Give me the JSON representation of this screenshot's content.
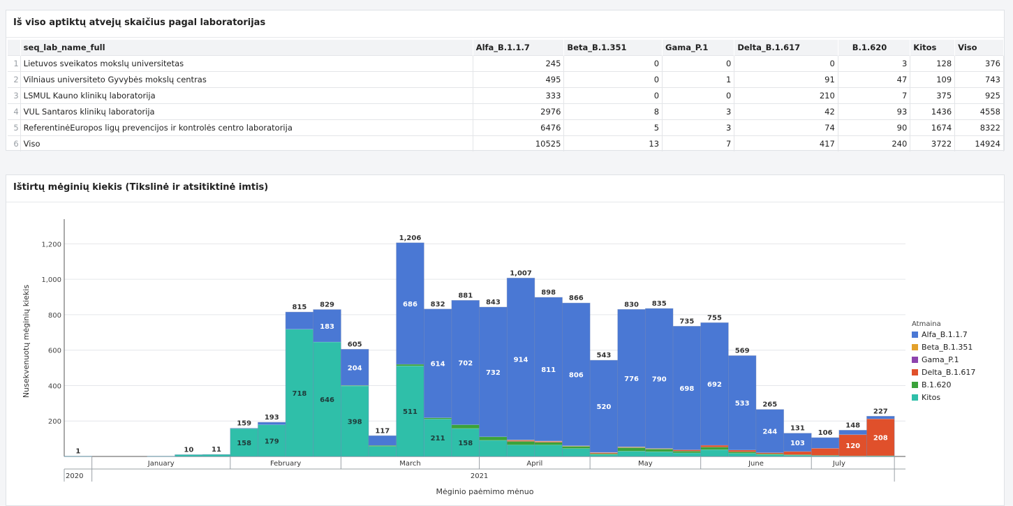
{
  "table_panel": {
    "title": "Iš viso aptiktų atvejų skaičius pagal laboratorijas",
    "columns": [
      "seq_lab_name_full",
      "Alfa_B.1.1.7",
      "Beta_B.1.351",
      "Gama_P.1",
      "Delta_B.1.617",
      "B.1.620",
      "Kitos",
      "Viso"
    ],
    "rows": [
      {
        "idx": "1",
        "cells": [
          "Lietuvos sveikatos mokslų universitetas",
          "245",
          "0",
          "0",
          "0",
          "3",
          "128",
          "376"
        ]
      },
      {
        "idx": "2",
        "cells": [
          "Vilniaus universiteto Gyvybės mokslų centras",
          "495",
          "0",
          "1",
          "91",
          "47",
          "109",
          "743"
        ]
      },
      {
        "idx": "3",
        "cells": [
          "LSMUL Kauno klinikų laboratorija",
          "333",
          "0",
          "0",
          "210",
          "7",
          "375",
          "925"
        ]
      },
      {
        "idx": "4",
        "cells": [
          "VUL Santaros klinikų laboratorija",
          "2976",
          "8",
          "3",
          "42",
          "93",
          "1436",
          "4558"
        ]
      },
      {
        "idx": "5",
        "cells": [
          "ReferentinėEuropos ligų prevencijos ir kontrolės centro laboratorija",
          "6476",
          "5",
          "3",
          "74",
          "90",
          "1674",
          "8322"
        ]
      },
      {
        "idx": "6",
        "cells": [
          "Viso",
          "10525",
          "13",
          "7",
          "417",
          "240",
          "3722",
          "14924"
        ]
      }
    ]
  },
  "chart_panel": {
    "title": "Ištirtų mėginių kiekis (Tikslinė ir atsitiktinė imtis)"
  },
  "chart_data": {
    "type": "bar",
    "stacked": true,
    "xlabel": "Mėginio paėmimo mėnuo",
    "ylabel": "Nusekvenuotų mėginių kiekis",
    "ylim": [
      0,
      1300
    ],
    "yticks": [
      200,
      400,
      600,
      800,
      1000,
      1200
    ],
    "ytick_labels": [
      "200",
      "400",
      "600",
      "800",
      "1,000",
      "1,200"
    ],
    "grid": true,
    "legend": {
      "title": "Atmaina",
      "position": "right"
    },
    "colors": {
      "Alfa_B.1.1.7": "#4a78d4",
      "Beta_B.1.351": "#e3a12b",
      "Gama_P.1": "#8e44ad",
      "Delta_B.1.617": "#e0502b",
      "B.1.620": "#3aa23a",
      "Kitos": "#2fbfa9"
    },
    "months": [
      {
        "label": "January",
        "start": 1,
        "end": 5
      },
      {
        "label": "February",
        "start": 6,
        "end": 9
      },
      {
        "label": "March",
        "start": 10,
        "end": 14
      },
      {
        "label": "April",
        "start": 15,
        "end": 18
      },
      {
        "label": "May",
        "start": 19,
        "end": 22
      },
      {
        "label": "June",
        "start": 23,
        "end": 26
      },
      {
        "label": "July",
        "start": 27,
        "end": 28
      }
    ],
    "years": [
      {
        "label": "2020",
        "start": 0,
        "end": 0
      },
      {
        "label": "2021",
        "start": 1,
        "end": 28
      }
    ],
    "weeks": [
      {
        "total": 1,
        "label": "1",
        "Alfa_B.1.1.7": 0,
        "Beta_B.1.351": 0,
        "Gama_P.1": 0,
        "Delta_B.1.617": 0,
        "B.1.620": 0,
        "Kitos": 1
      },
      {
        "total": 0,
        "label": "",
        "Alfa_B.1.1.7": 0,
        "Beta_B.1.351": 0,
        "Gama_P.1": 0,
        "Delta_B.1.617": 0,
        "B.1.620": 0,
        "Kitos": 0
      },
      {
        "total": 0,
        "label": "",
        "Alfa_B.1.1.7": 0,
        "Beta_B.1.351": 0,
        "Gama_P.1": 0,
        "Delta_B.1.617": 0,
        "B.1.620": 0,
        "Kitos": 0
      },
      {
        "total": 1,
        "label": "",
        "Alfa_B.1.1.7": 0,
        "Beta_B.1.351": 0,
        "Gama_P.1": 0,
        "Delta_B.1.617": 0,
        "B.1.620": 0,
        "Kitos": 1
      },
      {
        "total": 10,
        "label": "10",
        "Alfa_B.1.1.7": 0,
        "Beta_B.1.351": 0,
        "Gama_P.1": 0,
        "Delta_B.1.617": 0,
        "B.1.620": 0,
        "Kitos": 10
      },
      {
        "total": 11,
        "label": "11",
        "Alfa_B.1.1.7": 0,
        "Beta_B.1.351": 0,
        "Gama_P.1": 0,
        "Delta_B.1.617": 0,
        "B.1.620": 0,
        "Kitos": 11
      },
      {
        "total": 159,
        "label": "159",
        "Alfa_B.1.1.7": 1,
        "Beta_B.1.351": 0,
        "Gama_P.1": 0,
        "Delta_B.1.617": 0,
        "B.1.620": 0,
        "Kitos": 158,
        "kitos_label": "158"
      },
      {
        "total": 193,
        "label": "193",
        "Alfa_B.1.1.7": 14,
        "Beta_B.1.351": 0,
        "Gama_P.1": 0,
        "Delta_B.1.617": 0,
        "B.1.620": 0,
        "Kitos": 179,
        "kitos_label": "179"
      },
      {
        "total": 815,
        "label": "815",
        "Alfa_B.1.1.7": 97,
        "Beta_B.1.351": 0,
        "Gama_P.1": 0,
        "Delta_B.1.617": 0,
        "B.1.620": 0,
        "Kitos": 718,
        "kitos_label": "718"
      },
      {
        "total": 829,
        "label": "829",
        "Alfa_B.1.1.7": 183,
        "Beta_B.1.351": 0,
        "Gama_P.1": 0,
        "Delta_B.1.617": 0,
        "B.1.620": 0,
        "Kitos": 646,
        "alfa_label": "183",
        "kitos_label": "646"
      },
      {
        "total": 605,
        "label": "605",
        "Alfa_B.1.1.7": 204,
        "Beta_B.1.351": 0,
        "Gama_P.1": 0,
        "Delta_B.1.617": 0,
        "B.1.620": 3,
        "Kitos": 398,
        "alfa_label": "204",
        "kitos_label": "398"
      },
      {
        "total": 117,
        "label": "117",
        "Alfa_B.1.1.7": 55,
        "Beta_B.1.351": 0,
        "Gama_P.1": 0,
        "Delta_B.1.617": 0,
        "B.1.620": 5,
        "Kitos": 57
      },
      {
        "total": 1206,
        "label": "1,206",
        "Alfa_B.1.1.7": 686,
        "Beta_B.1.351": 0,
        "Gama_P.1": 0,
        "Delta_B.1.617": 0,
        "B.1.620": 9,
        "Kitos": 511,
        "alfa_label": "686",
        "kitos_label": "511"
      },
      {
        "total": 832,
        "label": "832",
        "Alfa_B.1.1.7": 614,
        "Beta_B.1.351": 0,
        "Gama_P.1": 0,
        "Delta_B.1.617": 0,
        "B.1.620": 7,
        "Kitos": 211,
        "alfa_label": "614",
        "kitos_label": "211"
      },
      {
        "total": 881,
        "label": "881",
        "Alfa_B.1.1.7": 702,
        "Beta_B.1.351": 0,
        "Gama_P.1": 0,
        "Delta_B.1.617": 0,
        "B.1.620": 21,
        "Kitos": 158,
        "alfa_label": "702",
        "kitos_label": "158"
      },
      {
        "total": 843,
        "label": "843",
        "Alfa_B.1.1.7": 732,
        "Beta_B.1.351": 0,
        "Gama_P.1": 0,
        "Delta_B.1.617": 0,
        "B.1.620": 20,
        "Kitos": 91,
        "alfa_label": "732"
      },
      {
        "total": 1007,
        "label": "1,007",
        "Alfa_B.1.1.7": 914,
        "Beta_B.1.351": 1,
        "Gama_P.1": 1,
        "Delta_B.1.617": 6,
        "B.1.620": 20,
        "Kitos": 65,
        "alfa_label": "914"
      },
      {
        "total": 898,
        "label": "898",
        "Alfa_B.1.1.7": 811,
        "Beta_B.1.351": 1,
        "Gama_P.1": 1,
        "Delta_B.1.617": 5,
        "B.1.620": 15,
        "Kitos": 65,
        "alfa_label": "811"
      },
      {
        "total": 866,
        "label": "866",
        "Alfa_B.1.1.7": 806,
        "Beta_B.1.351": 1,
        "Gama_P.1": 0,
        "Delta_B.1.617": 2,
        "B.1.620": 12,
        "Kitos": 45,
        "alfa_label": "806"
      },
      {
        "total": 543,
        "label": "543",
        "Alfa_B.1.1.7": 520,
        "Beta_B.1.351": 1,
        "Gama_P.1": 1,
        "Delta_B.1.617": 5,
        "B.1.620": 5,
        "Kitos": 11,
        "alfa_label": "520"
      },
      {
        "total": 830,
        "label": "830",
        "Alfa_B.1.1.7": 776,
        "Beta_B.1.351": 1,
        "Gama_P.1": 0,
        "Delta_B.1.617": 3,
        "B.1.620": 20,
        "Kitos": 30,
        "alfa_label": "776"
      },
      {
        "total": 835,
        "label": "835",
        "Alfa_B.1.1.7": 790,
        "Beta_B.1.351": 1,
        "Gama_P.1": 0,
        "Delta_B.1.617": 2,
        "B.1.620": 15,
        "Kitos": 27,
        "alfa_label": "790"
      },
      {
        "total": 735,
        "label": "735",
        "Alfa_B.1.1.7": 698,
        "Beta_B.1.351": 0,
        "Gama_P.1": 0,
        "Delta_B.1.617": 7,
        "B.1.620": 10,
        "Kitos": 20,
        "alfa_label": "698"
      },
      {
        "total": 755,
        "label": "755",
        "Alfa_B.1.1.7": 692,
        "Beta_B.1.351": 0,
        "Gama_P.1": 0,
        "Delta_B.1.617": 10,
        "B.1.620": 15,
        "Kitos": 38,
        "alfa_label": "692"
      },
      {
        "total": 569,
        "label": "569",
        "Alfa_B.1.1.7": 533,
        "Beta_B.1.351": 0,
        "Gama_P.1": 0,
        "Delta_B.1.617": 10,
        "B.1.620": 8,
        "Kitos": 18,
        "alfa_label": "533"
      },
      {
        "total": 265,
        "label": "265",
        "Alfa_B.1.1.7": 244,
        "Beta_B.1.351": 0,
        "Gama_P.1": 0,
        "Delta_B.1.617": 6,
        "B.1.620": 5,
        "Kitos": 10,
        "alfa_label": "244"
      },
      {
        "total": 131,
        "label": "131",
        "Alfa_B.1.1.7": 103,
        "Beta_B.1.351": 0,
        "Gama_P.1": 0,
        "Delta_B.1.617": 18,
        "B.1.620": 3,
        "Kitos": 7,
        "alfa_label": "103"
      },
      {
        "total": 106,
        "label": "106",
        "Alfa_B.1.1.7": 60,
        "Beta_B.1.351": 0,
        "Gama_P.1": 0,
        "Delta_B.1.617": 40,
        "B.1.620": 2,
        "Kitos": 4
      },
      {
        "total": 148,
        "label": "148",
        "Alfa_B.1.1.7": 25,
        "Beta_B.1.351": 0,
        "Gama_P.1": 0,
        "Delta_B.1.617": 120,
        "B.1.620": 1,
        "Kitos": 2,
        "delta_label": "120"
      },
      {
        "total": 227,
        "label": "227",
        "Alfa_B.1.1.7": 15,
        "Beta_B.1.351": 0,
        "Gama_P.1": 0,
        "Delta_B.1.617": 208,
        "B.1.620": 1,
        "Kitos": 3,
        "delta_label": "208"
      }
    ]
  }
}
